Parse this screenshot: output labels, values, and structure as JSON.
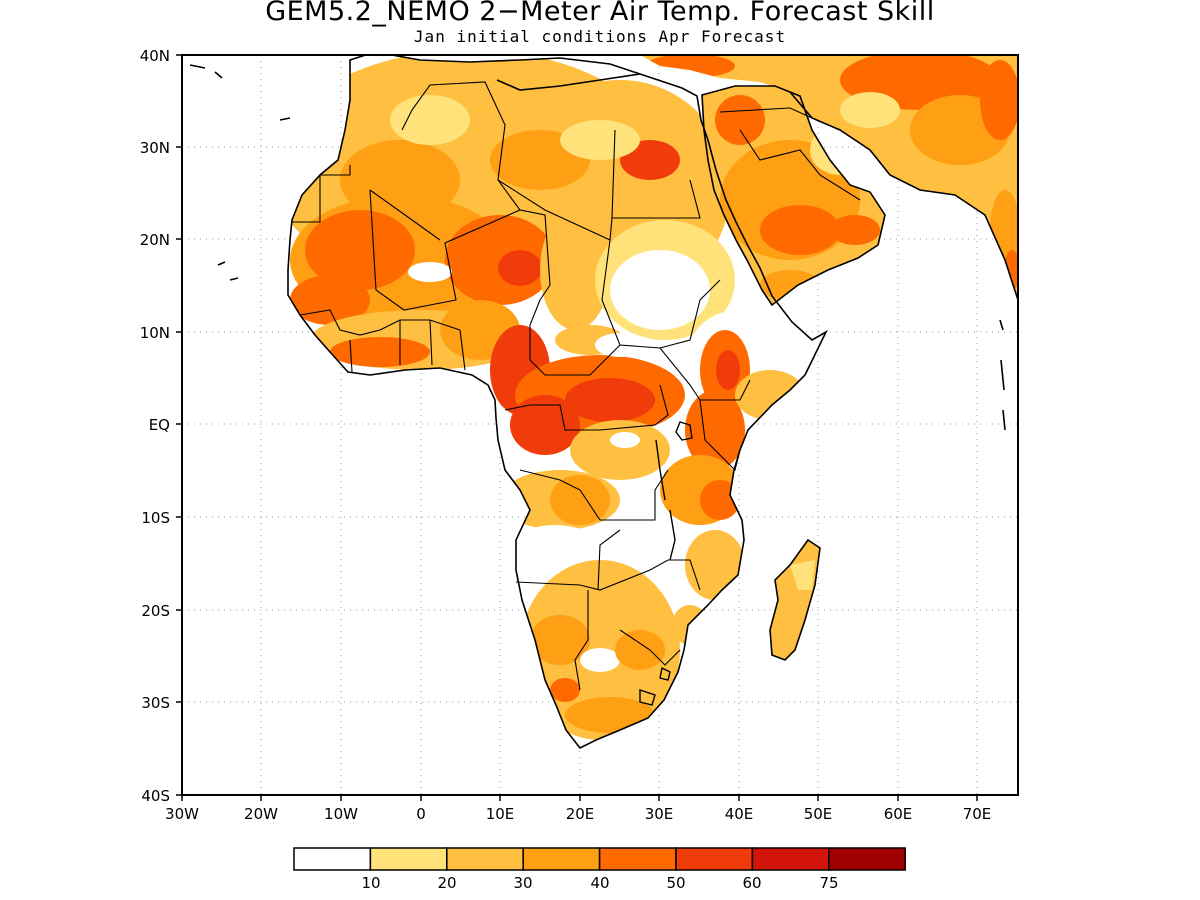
{
  "title": "GEM5.2_NEMO 2−Meter Air Temp. Forecast Skill",
  "subtitle": "Jan initial conditions  Apr Forecast",
  "map": {
    "region": "Africa and Arabian Peninsula",
    "lat_range": [
      -40,
      40
    ],
    "lon_range": [
      -30,
      75
    ],
    "grid": "dotted",
    "lat_labels": [
      "40N",
      "30N",
      "20N",
      "10N",
      "EQ",
      "10S",
      "20S",
      "30S",
      "40S"
    ],
    "lon_labels": [
      "30W",
      "20W",
      "10W",
      "0",
      "10E",
      "20E",
      "30E",
      "40E",
      "50E",
      "60E",
      "70E"
    ]
  },
  "legend": {
    "ticks": [
      "10",
      "20",
      "30",
      "40",
      "50",
      "60",
      "75"
    ],
    "colors": [
      "#ffffff",
      "#ffe27a",
      "#ffbf40",
      "#ff9f14",
      "#ff6a00",
      "#f03c0a",
      "#d2140a",
      "#a00000"
    ]
  }
}
